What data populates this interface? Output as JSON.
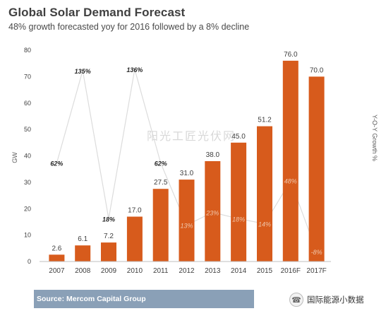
{
  "header": {
    "title": "Global Solar Demand Forecast",
    "subtitle": "48% growth forecasted yoy for 2016  followed by a 8% decline"
  },
  "footer": {
    "source": "Source: Mercom Capital Group",
    "brand": "国际能源小数据",
    "brand_icon": "chat-bubble-icon"
  },
  "watermark": "阳光工匠光伏网",
  "colors": {
    "bar": "#d75b1c",
    "growth_label": "#f0c7ac",
    "source_bar": "#8aa0b7"
  },
  "chart_data": {
    "type": "bar",
    "categories": [
      "2007",
      "2008",
      "2009",
      "2010",
      "2011",
      "2012",
      "2013",
      "2014",
      "2015",
      "2016F",
      "2017F"
    ],
    "values": [
      2.6,
      6.1,
      7.2,
      17.0,
      27.5,
      31.0,
      38.0,
      45.0,
      51.2,
      76.0,
      70.0
    ],
    "value_labels": [
      "2.6",
      "6.1",
      "7.2",
      "17.0",
      "27.5",
      "31.0",
      "38.0",
      "45.0",
      "51.2",
      "76.0",
      "70.0"
    ],
    "ylabel": "GW",
    "ylabel_right": "Y-O-Y Growth %",
    "ylim": [
      0,
      80
    ],
    "yticks": [
      0,
      10,
      20,
      30,
      40,
      50,
      60,
      70,
      80
    ],
    "grid": false,
    "growth": {
      "values": [
        62,
        135,
        18,
        136,
        62,
        13,
        23,
        18,
        14,
        48,
        -8
      ],
      "labels": [
        "62%",
        "135%",
        "18%",
        "136%",
        "62%",
        "13%",
        "23%",
        "18%",
        "14%",
        "48%",
        "-8%"
      ]
    }
  }
}
